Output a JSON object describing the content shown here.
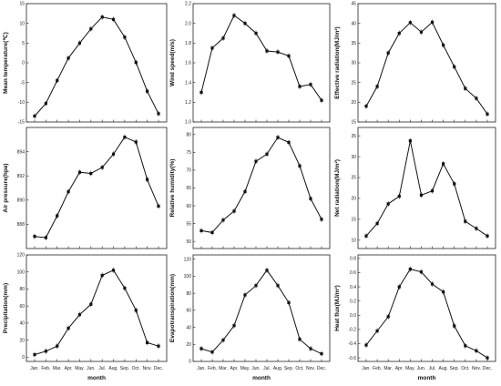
{
  "chart_data": [
    {
      "type": "line",
      "ylabel": "Mean temperature(℃)",
      "xlabel": "",
      "categories": [
        "Jan.",
        "Feb.",
        "Mar.",
        "Apr.",
        "May.",
        "Jun.",
        "Jul.",
        "Aug.",
        "Sep.",
        "Oct.",
        "Nov.",
        "Dec."
      ],
      "values": [
        -13.5,
        -10.3,
        -4.5,
        1.2,
        5.0,
        8.6,
        11.6,
        11.0,
        6.5,
        0.1,
        -7.2,
        -12.9
      ],
      "ylim": [
        -15,
        15
      ],
      "yticks": [
        -15,
        -10,
        -5,
        0,
        5,
        10,
        15
      ],
      "show_xticks": false
    },
    {
      "type": "line",
      "ylabel": "Wind speed(m/s)",
      "xlabel": "",
      "categories": [
        "Jan.",
        "Feb.",
        "Mar.",
        "Apr.",
        "May.",
        "Jun.",
        "Jul.",
        "Aug.",
        "Sep.",
        "Oct.",
        "Nov.",
        "Dec."
      ],
      "values": [
        1.3,
        1.75,
        1.85,
        2.08,
        2.0,
        1.9,
        1.72,
        1.71,
        1.67,
        1.36,
        1.38,
        1.22
      ],
      "ylim": [
        1.0,
        2.2
      ],
      "yticks": [
        "1.0",
        "1.2",
        "1.4",
        "1.6",
        "1.8",
        "2.0",
        "2.2"
      ],
      "show_xticks": false
    },
    {
      "type": "line",
      "ylabel": "Effective radiation(MJ/m²)",
      "xlabel": "",
      "categories": [
        "Jan.",
        "Feb.",
        "Mar.",
        "Apr.",
        "May.",
        "Jun.",
        "Jul.",
        "Aug.",
        "Sep.",
        "Oct.",
        "Nov.",
        "Dec."
      ],
      "values": [
        19,
        24,
        32.5,
        37.5,
        40.2,
        37.8,
        40.3,
        34.5,
        29,
        23.5,
        21,
        17
      ],
      "ylim": [
        15,
        45
      ],
      "yticks": [
        15,
        20,
        25,
        30,
        35,
        40,
        45
      ],
      "show_xticks": false
    },
    {
      "type": "line",
      "ylabel": "Air pressure(hpa)",
      "xlabel": "",
      "categories": [
        "Jan.",
        "Feb.",
        "Mar.",
        "Apr.",
        "May.",
        "Jun.",
        "Jul.",
        "Aug.",
        "Sep.",
        "Oct.",
        "Nov.",
        "Dec."
      ],
      "values": [
        887.0,
        886.9,
        888.7,
        890.7,
        892.3,
        892.2,
        892.7,
        893.8,
        895.2,
        894.8,
        891.7,
        889.5
      ],
      "ylim": [
        886,
        896
      ],
      "yticks": [
        888,
        890,
        892,
        894
      ],
      "show_xticks": false
    },
    {
      "type": "line",
      "ylabel": "Relative humidity(%)",
      "xlabel": "",
      "categories": [
        "Jan.",
        "Feb.",
        "Mar.",
        "Apr.",
        "May.",
        "Jun.",
        "Jul.",
        "Aug.",
        "Sep.",
        "Oct.",
        "Nov.",
        "Dec."
      ],
      "values": [
        53,
        52.5,
        56,
        58.5,
        64,
        72.5,
        74.5,
        79.2,
        77.8,
        71.2,
        62,
        56.2
      ],
      "ylim": [
        48,
        82
      ],
      "yticks": [
        50,
        55,
        60,
        65,
        70,
        75,
        80
      ],
      "show_xticks": false
    },
    {
      "type": "line",
      "ylabel": "Net radiation(MJ/m²)",
      "xlabel": "",
      "categories": [
        "Jan.",
        "Feb.",
        "Mar.",
        "Apr.",
        "May.",
        "Jun.",
        "Jul.",
        "Aug.",
        "Sep.",
        "Oct.",
        "Nov.",
        "Dec."
      ],
      "values": [
        11,
        14,
        18.7,
        20.5,
        33.8,
        20.8,
        21.8,
        28.3,
        23.5,
        14.5,
        12.8,
        11
      ],
      "ylim": [
        8,
        37
      ],
      "yticks": [
        10,
        15,
        20,
        25,
        30,
        35
      ],
      "show_xticks": false
    },
    {
      "type": "line",
      "ylabel": "Precipitation(mm)",
      "xlabel": "month",
      "categories": [
        "Jan.",
        "Feb.",
        "Mar.",
        "Apr.",
        "May.",
        "Jun.",
        "Jul.",
        "Aug.",
        "Sep.",
        "Oct.",
        "Nov.",
        "Dec."
      ],
      "values": [
        3,
        7,
        13,
        34,
        50,
        62,
        96,
        102,
        81,
        55,
        17,
        13
      ],
      "ylim": [
        -5,
        120
      ],
      "yticks": [
        0,
        20,
        40,
        60,
        80,
        100,
        120
      ],
      "show_xticks": true
    },
    {
      "type": "line",
      "ylabel": "Evapotranspiration(mm)",
      "xlabel": "month",
      "categories": [
        "Jan.",
        "Feb.",
        "Mar.",
        "Apr.",
        "May.",
        "Jun.",
        "Jul.",
        "Aug.",
        "Sep.",
        "Oct.",
        "Nov.",
        "Dec."
      ],
      "values": [
        15,
        11,
        25,
        42,
        78,
        89,
        107,
        89,
        69,
        26,
        15,
        9
      ],
      "ylim": [
        0,
        125
      ],
      "yticks": [
        0,
        20,
        40,
        60,
        80,
        100,
        120
      ],
      "show_xticks": true
    },
    {
      "type": "line",
      "ylabel": "Heat flux(MJ/m²)",
      "xlabel": "month",
      "categories": [
        "Jan.",
        "Feb.",
        "Mar.",
        "Apr.",
        "May.",
        "Jun.",
        "Jul.",
        "Aug.",
        "Sep.",
        "Oct.",
        "Nov.",
        "Dec."
      ],
      "values": [
        -0.42,
        -0.22,
        -0.02,
        0.4,
        0.65,
        0.61,
        0.44,
        0.33,
        -0.15,
        -0.43,
        -0.5,
        -0.6
      ],
      "ylim": [
        -0.65,
        0.85
      ],
      "yticks": [
        "-0.6",
        "-0.4",
        "-0.2",
        "0.0",
        "0.2",
        "0.4",
        "0.6",
        "0.8"
      ],
      "show_xticks": true
    }
  ]
}
